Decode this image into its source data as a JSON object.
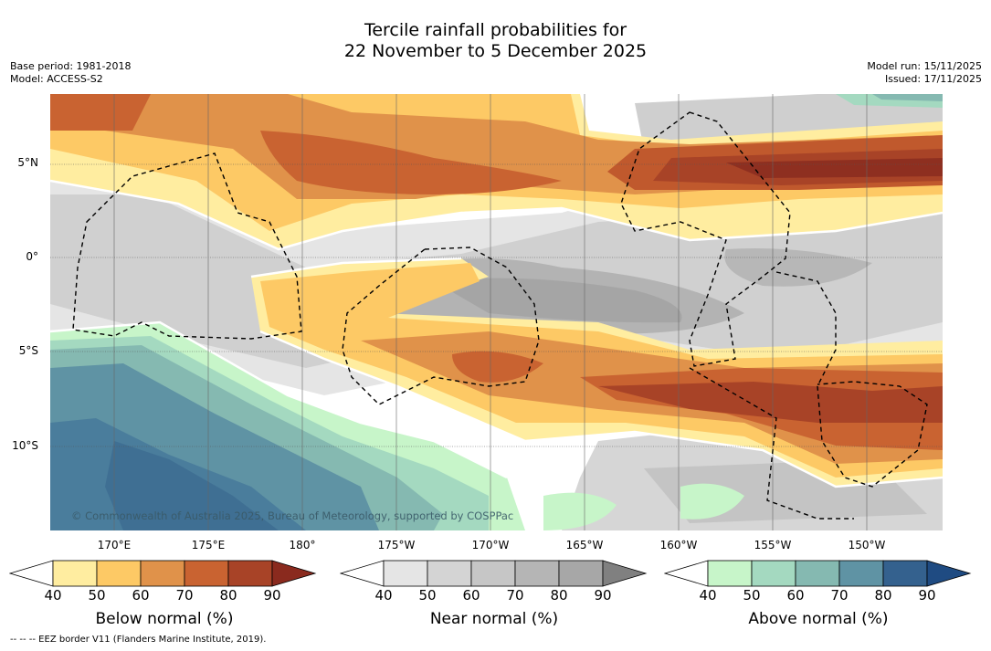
{
  "header": {
    "title_line1": "Tercile rainfall probabilities for",
    "title_line2": "22 November to 5 December 2025",
    "base_period": "Base period: 1981-2018",
    "model": "Model: ACCESS-S2",
    "model_run": "Model run: 15/11/2025",
    "issued": "Issued: 17/11/2025"
  },
  "map": {
    "lat_labels": [
      "5°N",
      "0°",
      "5°S",
      "10°S"
    ],
    "lon_labels": [
      "170°E",
      "175°E",
      "180°",
      "175°W",
      "170°W",
      "165°W",
      "160°W",
      "155°W",
      "150°W"
    ],
    "copyright": "© Commonwealth of Australia 2025, Bureau of Meteorology, supported by COSPPac",
    "colors": {
      "ocean_base": "#ffffff",
      "near_normal": [
        "#e5e5e5",
        "#d4d4d4",
        "#c6c6c6",
        "#b5b5b5",
        "#a7a7a7"
      ],
      "below_normal": [
        "#ffeda0",
        "#fdc965",
        "#e0924a",
        "#c96331",
        "#a84327",
        "#8a2a1e"
      ],
      "above_normal": [
        "#c7f5c9",
        "#a4d9c0",
        "#85b9b1",
        "#5f93a4",
        "#3f6f93",
        "#2b5583"
      ]
    }
  },
  "colorbars": [
    {
      "name": "below",
      "title": "Below normal (%)",
      "ticks": [
        "40",
        "50",
        "60",
        "70",
        "80",
        "90"
      ],
      "colors": [
        "#ffffff",
        "#ffeda0",
        "#fdc965",
        "#e0924a",
        "#c96331",
        "#a84327",
        "#8a2a1e"
      ]
    },
    {
      "name": "near",
      "title": "Near normal (%)",
      "ticks": [
        "40",
        "50",
        "60",
        "70",
        "80",
        "90"
      ],
      "colors": [
        "#ffffff",
        "#e5e5e5",
        "#d4d4d4",
        "#c6c6c6",
        "#b5b5b5",
        "#a7a7a7",
        "#808080"
      ]
    },
    {
      "name": "above",
      "title": "Above normal (%)",
      "ticks": [
        "40",
        "50",
        "60",
        "70",
        "80",
        "90"
      ],
      "colors": [
        "#ffffff",
        "#c7f5c9",
        "#a4d9c0",
        "#85b9b1",
        "#5f93a4",
        "#34618e",
        "#1f4b82"
      ]
    }
  ],
  "footnote": "-- -- -- EEZ border V11 (Flanders Marine Institute, 2019)."
}
